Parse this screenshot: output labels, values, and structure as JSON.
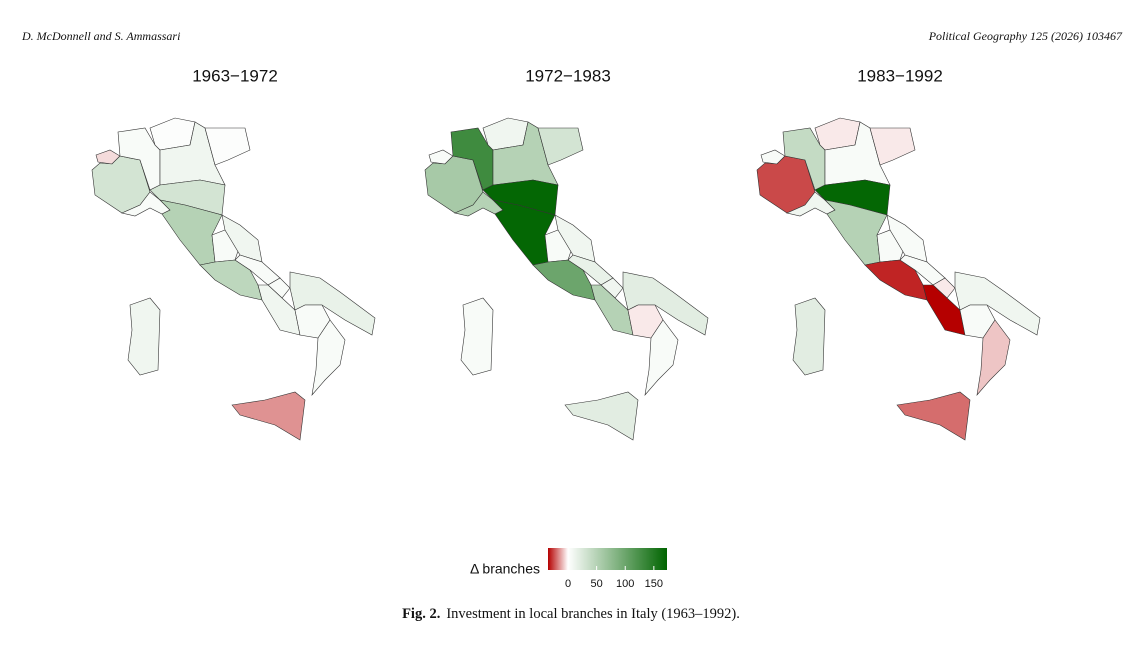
{
  "header": {
    "left": "D. McDonnell and S. Ammassari",
    "right": "Political Geography 125 (2026) 103467"
  },
  "chart_data": [
    {
      "type": "choropleth",
      "title": "1963−1972",
      "values": [
        -5,
        30,
        5,
        2,
        10,
        2,
        5,
        30,
        50,
        5,
        10,
        45,
        5,
        5,
        10,
        15,
        5,
        5,
        -15,
        10
      ]
    },
    {
      "type": "choropleth",
      "title": "1972−1983",
      "values": [
        5,
        60,
        130,
        10,
        50,
        30,
        50,
        170,
        170,
        5,
        10,
        100,
        15,
        10,
        50,
        20,
        -3,
        5,
        20,
        5
      ]
    },
    {
      "type": "choropleth",
      "title": "1983−1992",
      "values": [
        5,
        -25,
        40,
        -3,
        5,
        -3,
        10,
        170,
        50,
        5,
        5,
        -30,
        5,
        -3,
        -35,
        10,
        5,
        -8,
        -20,
        20
      ]
    }
  ],
  "legend": {
    "title": "Δ branches",
    "lim": [
      -35,
      173
    ],
    "ticks": [
      0,
      50,
      100,
      150
    ],
    "colors": [
      "#b50000",
      "#ffffff",
      "#006400"
    ]
  },
  "caption": {
    "label": "Fig. 2.",
    "text": "Investment in local branches in Italy (1963–1992)."
  }
}
